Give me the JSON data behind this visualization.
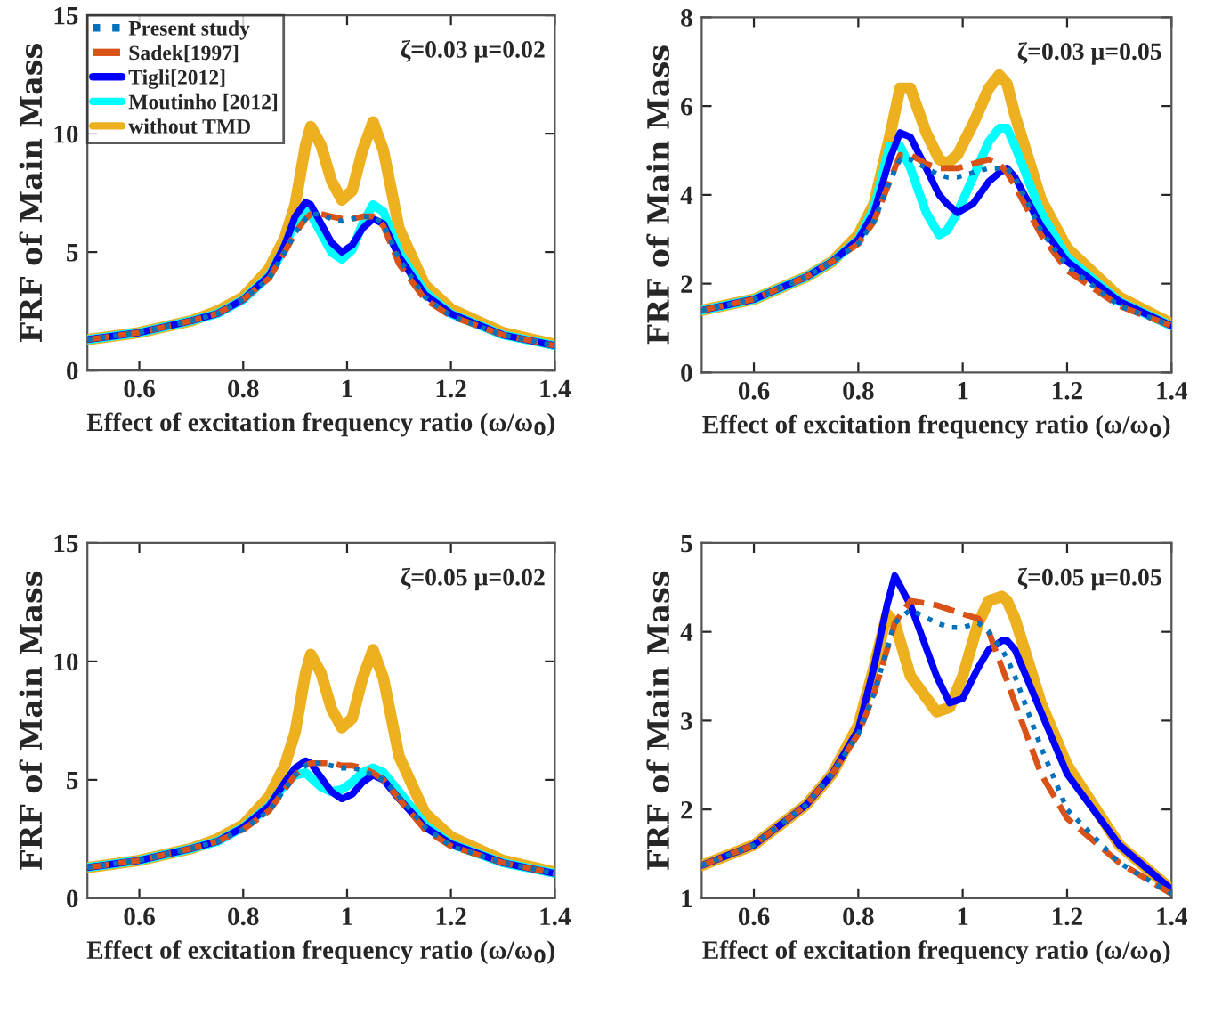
{
  "chart_data": [
    {
      "type": "line",
      "xlabel": "Effect of excitation frequency ratio (ω/ω$_{0}$)",
      "ylabel": "FRF of Main Mass",
      "annotations": [
        "ζ=0.03 μ=0.02"
      ],
      "xlim": [
        0.5,
        1.4
      ],
      "xticks": [
        0.6,
        0.8,
        1,
        1.2,
        1.4
      ],
      "ylim": [
        0,
        15
      ],
      "yticks": [
        0,
        5,
        10,
        15
      ],
      "legend": "top left",
      "grid": false,
      "x": [
        0.5,
        0.6,
        0.7,
        0.75,
        0.8,
        0.85,
        0.88,
        0.9,
        0.92,
        0.93,
        0.95,
        0.97,
        0.99,
        1.01,
        1.03,
        1.05,
        1.07,
        1.1,
        1.15,
        1.2,
        1.3,
        1.4
      ],
      "series": [
        {
          "name": "Present study",
          "color": "#0072bd",
          "line_style": "dotted",
          "values": [
            1.3,
            1.6,
            2.1,
            2.4,
            3.0,
            3.9,
            5.0,
            5.8,
            6.4,
            6.6,
            6.6,
            6.4,
            6.3,
            6.4,
            6.5,
            6.5,
            6.2,
            4.7,
            3.1,
            2.3,
            1.5,
            1.05
          ]
        },
        {
          "name": "Sadek[1997]",
          "color": "#d95319",
          "line_style": "dashed",
          "values": [
            1.3,
            1.6,
            2.1,
            2.4,
            3.0,
            3.9,
            5.0,
            5.8,
            6.4,
            6.6,
            6.6,
            6.5,
            6.4,
            6.4,
            6.5,
            6.5,
            6.1,
            4.5,
            3.0,
            2.3,
            1.5,
            1.05
          ]
        },
        {
          "name": "Tigli[2012]",
          "color": "#0000ff",
          "line_style": "solid",
          "values": [
            1.3,
            1.6,
            2.1,
            2.4,
            3.0,
            4.0,
            5.3,
            6.5,
            7.1,
            7.0,
            6.2,
            5.4,
            5.0,
            5.3,
            6.0,
            6.4,
            6.2,
            4.8,
            3.2,
            2.4,
            1.5,
            1.05
          ]
        },
        {
          "name": "Moutinho [2012]",
          "color": "#00ffff",
          "line_style": "solid",
          "values": [
            1.3,
            1.6,
            2.1,
            2.4,
            3.0,
            4.0,
            5.2,
            6.3,
            6.8,
            6.6,
            5.8,
            5.0,
            4.7,
            5.1,
            6.2,
            7.0,
            6.7,
            5.0,
            3.3,
            2.4,
            1.5,
            1.05
          ]
        },
        {
          "name": "without TMD",
          "color": "#edb120",
          "line_style": "solid",
          "values": [
            1.3,
            1.6,
            2.1,
            2.5,
            3.1,
            4.3,
            5.6,
            7.0,
            9.5,
            10.3,
            9.5,
            8.0,
            7.2,
            7.6,
            9.3,
            10.5,
            9.3,
            6.0,
            3.6,
            2.6,
            1.6,
            1.1
          ]
        }
      ]
    },
    {
      "type": "line",
      "xlabel": "Effect of excitation frequency ratio (ω/ω$_{0}$)",
      "ylabel": "FRF of Main Mass",
      "annotations": [
        "ζ=0.03 μ=0.05"
      ],
      "xlim": [
        0.5,
        1.4
      ],
      "xticks": [
        0.6,
        0.8,
        1,
        1.2,
        1.4
      ],
      "ylim": [
        0,
        8
      ],
      "yticks": [
        0,
        2,
        4,
        6,
        8
      ],
      "grid": false,
      "x": [
        0.5,
        0.6,
        0.7,
        0.75,
        0.8,
        0.83,
        0.86,
        0.88,
        0.9,
        0.93,
        0.955,
        0.97,
        0.99,
        1.02,
        1.05,
        1.07,
        1.085,
        1.1,
        1.15,
        1.2,
        1.3,
        1.4
      ],
      "series": [
        {
          "color": "#0072bd",
          "line_style": "dotted",
          "values": [
            1.4,
            1.65,
            2.15,
            2.5,
            2.9,
            3.4,
            4.3,
            4.8,
            4.8,
            4.6,
            4.45,
            4.4,
            4.4,
            4.5,
            4.6,
            4.6,
            4.6,
            4.4,
            3.2,
            2.4,
            1.5,
            1.05
          ]
        },
        {
          "color": "#d95319",
          "line_style": "dashed",
          "values": [
            1.4,
            1.65,
            2.15,
            2.5,
            2.9,
            3.4,
            4.3,
            4.9,
            4.9,
            4.7,
            4.6,
            4.6,
            4.6,
            4.7,
            4.8,
            4.7,
            4.5,
            4.2,
            3.1,
            2.3,
            1.5,
            1.05
          ]
        },
        {
          "color": "#0000ff",
          "line_style": "solid",
          "values": [
            1.4,
            1.65,
            2.15,
            2.5,
            3.0,
            3.6,
            4.8,
            5.4,
            5.3,
            4.6,
            4.0,
            3.8,
            3.6,
            3.8,
            4.3,
            4.5,
            4.6,
            4.4,
            3.3,
            2.5,
            1.6,
            1.05
          ]
        },
        {
          "color": "#00ffff",
          "line_style": "solid",
          "values": [
            1.4,
            1.65,
            2.15,
            2.5,
            3.0,
            3.7,
            5.1,
            5.1,
            4.6,
            3.6,
            3.1,
            3.2,
            3.6,
            4.4,
            5.2,
            5.5,
            5.5,
            5.1,
            3.6,
            2.6,
            1.6,
            1.05
          ]
        },
        {
          "color": "#edb120",
          "line_style": "solid",
          "values": [
            1.4,
            1.65,
            2.15,
            2.5,
            3.1,
            3.8,
            5.3,
            6.4,
            6.4,
            5.4,
            4.8,
            4.7,
            4.9,
            5.6,
            6.4,
            6.7,
            6.5,
            5.8,
            3.9,
            2.8,
            1.7,
            1.1
          ]
        }
      ]
    },
    {
      "type": "line",
      "xlabel": "Effect of excitation frequency ratio (ω/ω$_{0}$)",
      "ylabel": "FRF of Main Mass",
      "annotations": [
        "ζ=0.05 μ=0.02"
      ],
      "xlim": [
        0.5,
        1.4
      ],
      "xticks": [
        0.6,
        0.8,
        1,
        1.2,
        1.4
      ],
      "ylim": [
        0,
        15
      ],
      "yticks": [
        0,
        5,
        10,
        15
      ],
      "grid": false,
      "x": [
        0.5,
        0.6,
        0.7,
        0.75,
        0.8,
        0.85,
        0.88,
        0.9,
        0.92,
        0.93,
        0.95,
        0.97,
        0.99,
        1.01,
        1.03,
        1.05,
        1.07,
        1.1,
        1.15,
        1.2,
        1.3,
        1.4
      ],
      "series": [
        {
          "color": "#0072bd",
          "line_style": "dotted",
          "values": [
            1.3,
            1.6,
            2.1,
            2.4,
            2.9,
            3.7,
            4.6,
            5.2,
            5.6,
            5.7,
            5.7,
            5.6,
            5.5,
            5.5,
            5.4,
            5.2,
            5.0,
            4.3,
            3.0,
            2.2,
            1.5,
            1.05
          ]
        },
        {
          "color": "#d95319",
          "line_style": "dashed",
          "values": [
            1.3,
            1.6,
            2.1,
            2.4,
            2.9,
            3.7,
            4.6,
            5.2,
            5.6,
            5.7,
            5.7,
            5.7,
            5.6,
            5.6,
            5.5,
            5.3,
            5.0,
            4.2,
            2.9,
            2.2,
            1.5,
            1.05
          ]
        },
        {
          "color": "#0000ff",
          "line_style": "solid",
          "values": [
            1.3,
            1.6,
            2.1,
            2.4,
            3.0,
            3.9,
            4.9,
            5.5,
            5.8,
            5.7,
            5.1,
            4.5,
            4.2,
            4.4,
            4.9,
            5.2,
            5.0,
            4.2,
            3.0,
            2.3,
            1.5,
            1.05
          ]
        },
        {
          "color": "#00ffff",
          "line_style": "solid",
          "values": [
            1.3,
            1.6,
            2.1,
            2.4,
            3.0,
            3.9,
            4.8,
            5.2,
            5.3,
            5.1,
            4.7,
            4.5,
            4.6,
            4.9,
            5.3,
            5.5,
            5.3,
            4.5,
            3.1,
            2.3,
            1.5,
            1.05
          ]
        },
        {
          "color": "#edb120",
          "line_style": "solid",
          "values": [
            1.3,
            1.6,
            2.1,
            2.5,
            3.1,
            4.3,
            5.6,
            7.0,
            9.5,
            10.3,
            9.5,
            8.0,
            7.2,
            7.6,
            9.3,
            10.5,
            9.3,
            6.0,
            3.6,
            2.6,
            1.6,
            1.1
          ]
        }
      ]
    },
    {
      "type": "line",
      "xlabel": "Effect of excitation frequency ratio (ω/ω$_{0}$)",
      "ylabel": "FRF of Main Mass",
      "annotations": [
        "ζ=0.05 μ=0.05"
      ],
      "xlim": [
        0.5,
        1.4
      ],
      "xticks": [
        0.6,
        0.8,
        1,
        1.2,
        1.4
      ],
      "ylim": [
        1,
        5
      ],
      "yticks": [
        1,
        2,
        3,
        4,
        5
      ],
      "grid": false,
      "x": [
        0.5,
        0.6,
        0.7,
        0.75,
        0.8,
        0.83,
        0.855,
        0.87,
        0.9,
        0.95,
        0.975,
        1.0,
        1.03,
        1.05,
        1.075,
        1.085,
        1.1,
        1.15,
        1.2,
        1.3,
        1.4
      ],
      "series": [
        {
          "color": "#0072bd",
          "line_style": "dotted",
          "values": [
            1.37,
            1.6,
            2.05,
            2.4,
            2.85,
            3.3,
            3.8,
            4.1,
            4.25,
            4.1,
            4.05,
            4.05,
            4.1,
            4.0,
            3.8,
            3.7,
            3.5,
            2.7,
            2.0,
            1.4,
            1.05
          ]
        },
        {
          "color": "#d95319",
          "line_style": "dashed",
          "values": [
            1.37,
            1.6,
            2.05,
            2.4,
            2.85,
            3.3,
            3.8,
            4.1,
            4.35,
            4.3,
            4.25,
            4.2,
            4.15,
            4.0,
            3.6,
            3.45,
            3.2,
            2.4,
            1.9,
            1.4,
            1.05
          ]
        },
        {
          "color": "#0000ff",
          "line_style": "solid",
          "values": [
            1.37,
            1.6,
            2.05,
            2.4,
            2.9,
            3.6,
            4.3,
            4.63,
            4.3,
            3.5,
            3.2,
            3.25,
            3.6,
            3.8,
            3.9,
            3.9,
            3.8,
            3.1,
            2.4,
            1.6,
            1.1
          ]
        },
        {
          "color": "#edb120",
          "line_style": "solid",
          "values": [
            1.37,
            1.6,
            2.05,
            2.4,
            2.95,
            3.6,
            4.2,
            4.1,
            3.5,
            3.1,
            3.15,
            3.5,
            4.1,
            4.35,
            4.4,
            4.35,
            4.15,
            3.2,
            2.5,
            1.6,
            1.1
          ]
        }
      ]
    }
  ]
}
